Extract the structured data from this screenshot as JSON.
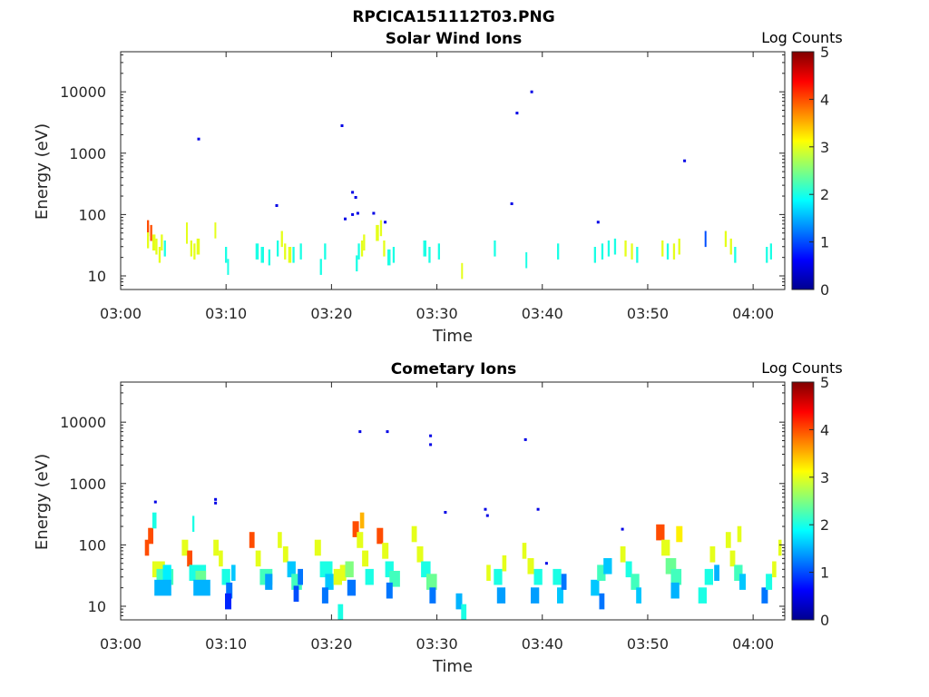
{
  "page_title": "RPCICA151112T03.PNG",
  "chart_data": [
    {
      "type": "heatmap",
      "title": "Solar Wind Ions",
      "xlabel": "Time",
      "ylabel": "Energy (eV)",
      "x_ticks": [
        "03:00",
        "03:10",
        "03:20",
        "03:30",
        "03:40",
        "03:50",
        "04:00"
      ],
      "x_range_minutes": [
        0,
        63
      ],
      "y_scale": "log",
      "y_ticks": [
        10,
        100,
        1000,
        10000
      ],
      "y_tick_labels": [
        "10",
        "100",
        "1000",
        "10000"
      ],
      "y_range": [
        6,
        45000
      ],
      "colorbar": {
        "title": "Log Counts",
        "min": 0,
        "max": 5,
        "ticks": [
          "0",
          "1",
          "2",
          "3",
          "4",
          "5"
        ],
        "colormap": "jet"
      },
      "cells": [
        [
          2.5,
          60,
          0.2,
          4
        ],
        [
          2.5,
          38,
          0.2,
          3
        ],
        [
          2.8,
          50,
          0.2,
          4
        ],
        [
          3,
          35,
          0.3,
          3
        ],
        [
          3.3,
          30,
          0.2,
          3
        ],
        [
          3.6,
          22,
          0.2,
          3
        ],
        [
          3.8,
          35,
          0.2,
          3
        ],
        [
          4.1,
          28,
          0.2,
          2
        ],
        [
          6.2,
          45,
          0.1,
          3
        ],
        [
          6.2,
          55,
          0.1,
          3
        ],
        [
          6.6,
          28,
          0.2,
          3
        ],
        [
          6.9,
          25,
          0.2,
          3
        ],
        [
          7.2,
          30,
          0.3,
          3
        ],
        [
          8.9,
          55,
          0.1,
          3
        ],
        [
          9.9,
          22,
          0.2,
          2
        ],
        [
          10.1,
          14,
          0.1,
          2
        ],
        [
          12.8,
          25,
          0.3,
          2
        ],
        [
          13.3,
          22,
          0.3,
          2
        ],
        [
          14.0,
          20,
          0.2,
          2
        ],
        [
          14.8,
          28,
          0.2,
          2
        ],
        [
          15.2,
          40,
          0.2,
          3
        ],
        [
          15.5,
          25,
          0.2,
          3
        ],
        [
          15.9,
          22,
          0.3,
          3
        ],
        [
          16.3,
          22,
          0.2,
          2
        ],
        [
          17.0,
          25,
          0.2,
          2
        ],
        [
          18.9,
          14,
          0.2,
          2
        ],
        [
          19.3,
          25,
          0.2,
          2
        ],
        [
          22.3,
          16,
          0.2,
          2
        ],
        [
          22.5,
          25,
          0.2,
          2
        ],
        [
          22.8,
          28,
          0.2,
          3
        ],
        [
          23.0,
          35,
          0.2,
          3
        ],
        [
          24.2,
          50,
          0.3,
          3
        ],
        [
          24.6,
          60,
          0.2,
          3
        ],
        [
          24.9,
          28,
          0.2,
          3
        ],
        [
          25.3,
          20,
          0.3,
          2
        ],
        [
          25.8,
          22,
          0.2,
          2
        ],
        [
          28.7,
          28,
          0.3,
          2
        ],
        [
          29.2,
          22,
          0.2,
          2
        ],
        [
          30.1,
          25,
          0.2,
          2
        ],
        [
          32.3,
          12,
          0.1,
          3
        ],
        [
          35.4,
          28,
          0.2,
          2
        ],
        [
          38.4,
          18,
          0.1,
          2
        ],
        [
          41.4,
          25,
          0.2,
          2
        ],
        [
          44.9,
          22,
          0.2,
          2
        ],
        [
          45.6,
          25,
          0.2,
          2
        ],
        [
          46.2,
          28,
          0.2,
          2
        ],
        [
          46.8,
          30,
          0.2,
          2
        ],
        [
          47.8,
          28,
          0.2,
          3
        ],
        [
          48.4,
          25,
          0.2,
          3
        ],
        [
          48.9,
          22,
          0.2,
          2
        ],
        [
          51.3,
          28,
          0.2,
          3
        ],
        [
          51.8,
          25,
          0.2,
          2
        ],
        [
          52.4,
          25,
          0.2,
          3
        ],
        [
          52.9,
          30,
          0.2,
          3
        ],
        [
          55.4,
          40,
          0.1,
          1
        ],
        [
          57.3,
          40,
          0.2,
          3
        ],
        [
          57.8,
          30,
          0.2,
          3
        ],
        [
          58.2,
          22,
          0.2,
          2
        ],
        [
          61.2,
          22,
          0.2,
          2
        ],
        [
          61.6,
          25,
          0.2,
          2
        ]
      ],
      "points": [
        [
          7.4,
          1700
        ],
        [
          21.0,
          2800
        ],
        [
          22.0,
          230
        ],
        [
          22.3,
          190
        ],
        [
          21.3,
          85
        ],
        [
          22.0,
          100
        ],
        [
          22.5,
          105
        ],
        [
          24.0,
          105
        ],
        [
          14.8,
          140
        ],
        [
          37.1,
          150
        ],
        [
          37.6,
          4500
        ],
        [
          39.0,
          10000
        ],
        [
          53.5,
          750
        ],
        [
          45.3,
          75
        ],
        [
          25.1,
          75
        ]
      ]
    },
    {
      "type": "heatmap",
      "title": "Cometary Ions",
      "xlabel": "Time",
      "ylabel": "Energy (eV)",
      "x_ticks": [
        "03:00",
        "03:10",
        "03:20",
        "03:30",
        "03:40",
        "03:50",
        "04:00"
      ],
      "x_range_minutes": [
        0,
        63
      ],
      "y_scale": "log",
      "y_ticks": [
        10,
        100,
        1000,
        10000
      ],
      "y_tick_labels": [
        "10",
        "100",
        "1000",
        "10000"
      ],
      "y_range": [
        6,
        45000
      ],
      "colorbar": {
        "title": "Log Counts",
        "min": 0,
        "max": 5,
        "ticks": [
          "0",
          "1",
          "2",
          "3",
          "4",
          "5"
        ],
        "colormap": "jet"
      },
      "cells": [
        [
          2.3,
          90,
          0.4,
          4
        ],
        [
          2.6,
          140,
          0.5,
          4
        ],
        [
          3.0,
          250,
          0.4,
          2
        ],
        [
          3.0,
          40,
          1.2,
          3
        ],
        [
          3.4,
          30,
          1.6,
          2.2
        ],
        [
          4.0,
          35,
          0.8,
          1.8
        ],
        [
          3.2,
          20,
          1.6,
          1.5
        ],
        [
          5.8,
          90,
          0.6,
          3
        ],
        [
          6.3,
          60,
          0.5,
          4
        ],
        [
          6.5,
          35,
          1.6,
          2
        ],
        [
          7.1,
          28,
          1.0,
          2.4
        ],
        [
          6.9,
          20,
          1.6,
          1.5
        ],
        [
          6.8,
          220,
          0.2,
          2
        ],
        [
          8.8,
          90,
          0.5,
          3
        ],
        [
          9.3,
          60,
          0.4,
          3
        ],
        [
          9.6,
          30,
          0.8,
          2
        ],
        [
          10.0,
          18,
          0.6,
          1.2
        ],
        [
          9.9,
          12,
          0.6,
          0.8
        ],
        [
          10.5,
          35,
          0.4,
          1.6
        ],
        [
          12.2,
          120,
          0.5,
          4
        ],
        [
          12.8,
          60,
          0.5,
          3
        ],
        [
          13.2,
          30,
          1.2,
          2.2
        ],
        [
          13.7,
          25,
          0.7,
          1.4
        ],
        [
          14.9,
          120,
          0.4,
          3
        ],
        [
          15.4,
          70,
          0.5,
          3
        ],
        [
          15.8,
          40,
          0.8,
          1.6
        ],
        [
          16.2,
          25,
          1.0,
          2.2
        ],
        [
          16.8,
          30,
          0.5,
          1.2
        ],
        [
          16.4,
          16,
          0.5,
          1.0
        ],
        [
          18.4,
          90,
          0.6,
          3
        ],
        [
          18.9,
          40,
          1.2,
          2
        ],
        [
          19.4,
          25,
          0.8,
          1.6
        ],
        [
          19.1,
          15,
          0.6,
          1.2
        ],
        [
          20.2,
          30,
          0.8,
          3
        ],
        [
          20.8,
          35,
          0.6,
          3
        ],
        [
          21.3,
          40,
          0.8,
          2.5
        ],
        [
          21.5,
          20,
          0.8,
          1.2
        ],
        [
          20.6,
          8,
          0.5,
          2
        ],
        [
          22.0,
          180,
          0.6,
          4
        ],
        [
          22.4,
          120,
          0.6,
          3
        ],
        [
          22.7,
          250,
          0.4,
          3.5
        ],
        [
          22.9,
          60,
          0.6,
          3
        ],
        [
          23.2,
          30,
          0.8,
          2
        ],
        [
          24.3,
          140,
          0.6,
          4
        ],
        [
          24.8,
          80,
          0.6,
          3
        ],
        [
          25.1,
          40,
          0.8,
          2
        ],
        [
          25.5,
          28,
          1.0,
          2.2
        ],
        [
          25.2,
          18,
          0.6,
          1.2
        ],
        [
          27.6,
          150,
          0.5,
          3
        ],
        [
          28.1,
          70,
          0.6,
          3
        ],
        [
          28.5,
          40,
          0.9,
          2
        ],
        [
          29.0,
          25,
          1.0,
          2.4
        ],
        [
          29.3,
          15,
          0.6,
          1.2
        ],
        [
          31.8,
          12,
          0.6,
          1.5
        ],
        [
          32.3,
          8,
          0.5,
          2
        ],
        [
          34.7,
          35,
          0.4,
          3
        ],
        [
          35.4,
          30,
          0.8,
          2
        ],
        [
          35.7,
          15,
          0.8,
          1.4
        ],
        [
          36.2,
          50,
          0.4,
          3
        ],
        [
          38.1,
          80,
          0.4,
          3
        ],
        [
          38.6,
          45,
          0.6,
          3
        ],
        [
          39.2,
          30,
          0.8,
          2
        ],
        [
          38.9,
          15,
          0.8,
          1.4
        ],
        [
          41.0,
          30,
          0.8,
          2
        ],
        [
          41.4,
          15,
          0.6,
          1.6
        ],
        [
          41.8,
          25,
          0.5,
          1.2
        ],
        [
          44.6,
          20,
          0.8,
          1.6
        ],
        [
          45.2,
          35,
          0.8,
          2.2
        ],
        [
          45.8,
          45,
          0.8,
          1.6
        ],
        [
          45.4,
          12,
          0.5,
          1.2
        ],
        [
          47.4,
          70,
          0.5,
          3
        ],
        [
          47.9,
          40,
          0.6,
          2
        ],
        [
          48.4,
          25,
          0.8,
          2.2
        ],
        [
          48.9,
          15,
          0.5,
          1.6
        ],
        [
          50.8,
          160,
          0.8,
          4
        ],
        [
          51.3,
          90,
          0.8,
          3
        ],
        [
          51.7,
          45,
          1.0,
          2.4
        ],
        [
          52.2,
          30,
          1.0,
          2.2
        ],
        [
          52.7,
          150,
          0.6,
          3.2
        ],
        [
          52.2,
          18,
          0.8,
          1.5
        ],
        [
          54.8,
          15,
          0.8,
          2
        ],
        [
          55.4,
          30,
          0.8,
          2
        ],
        [
          55.9,
          70,
          0.5,
          3
        ],
        [
          56.3,
          35,
          0.5,
          1.5
        ],
        [
          57.4,
          120,
          0.5,
          3
        ],
        [
          57.8,
          60,
          0.5,
          3
        ],
        [
          58.2,
          35,
          0.8,
          2.2
        ],
        [
          58.7,
          25,
          0.6,
          1.6
        ],
        [
          58.5,
          150,
          0.4,
          3
        ],
        [
          60.8,
          15,
          0.6,
          1.2
        ],
        [
          61.2,
          25,
          0.6,
          2
        ],
        [
          61.8,
          40,
          0.4,
          3
        ],
        [
          62.4,
          90,
          0.3,
          3
        ]
      ],
      "points": [
        [
          22.7,
          7000
        ],
        [
          25.3,
          7000
        ],
        [
          29.4,
          4300
        ],
        [
          29.4,
          6000
        ],
        [
          38.4,
          5200
        ],
        [
          3.3,
          500
        ],
        [
          9.0,
          550
        ],
        [
          9.0,
          480
        ],
        [
          30.8,
          340
        ],
        [
          34.6,
          380
        ],
        [
          34.8,
          300
        ],
        [
          39.6,
          380
        ],
        [
          40.4,
          50
        ],
        [
          47.6,
          180
        ]
      ]
    }
  ]
}
